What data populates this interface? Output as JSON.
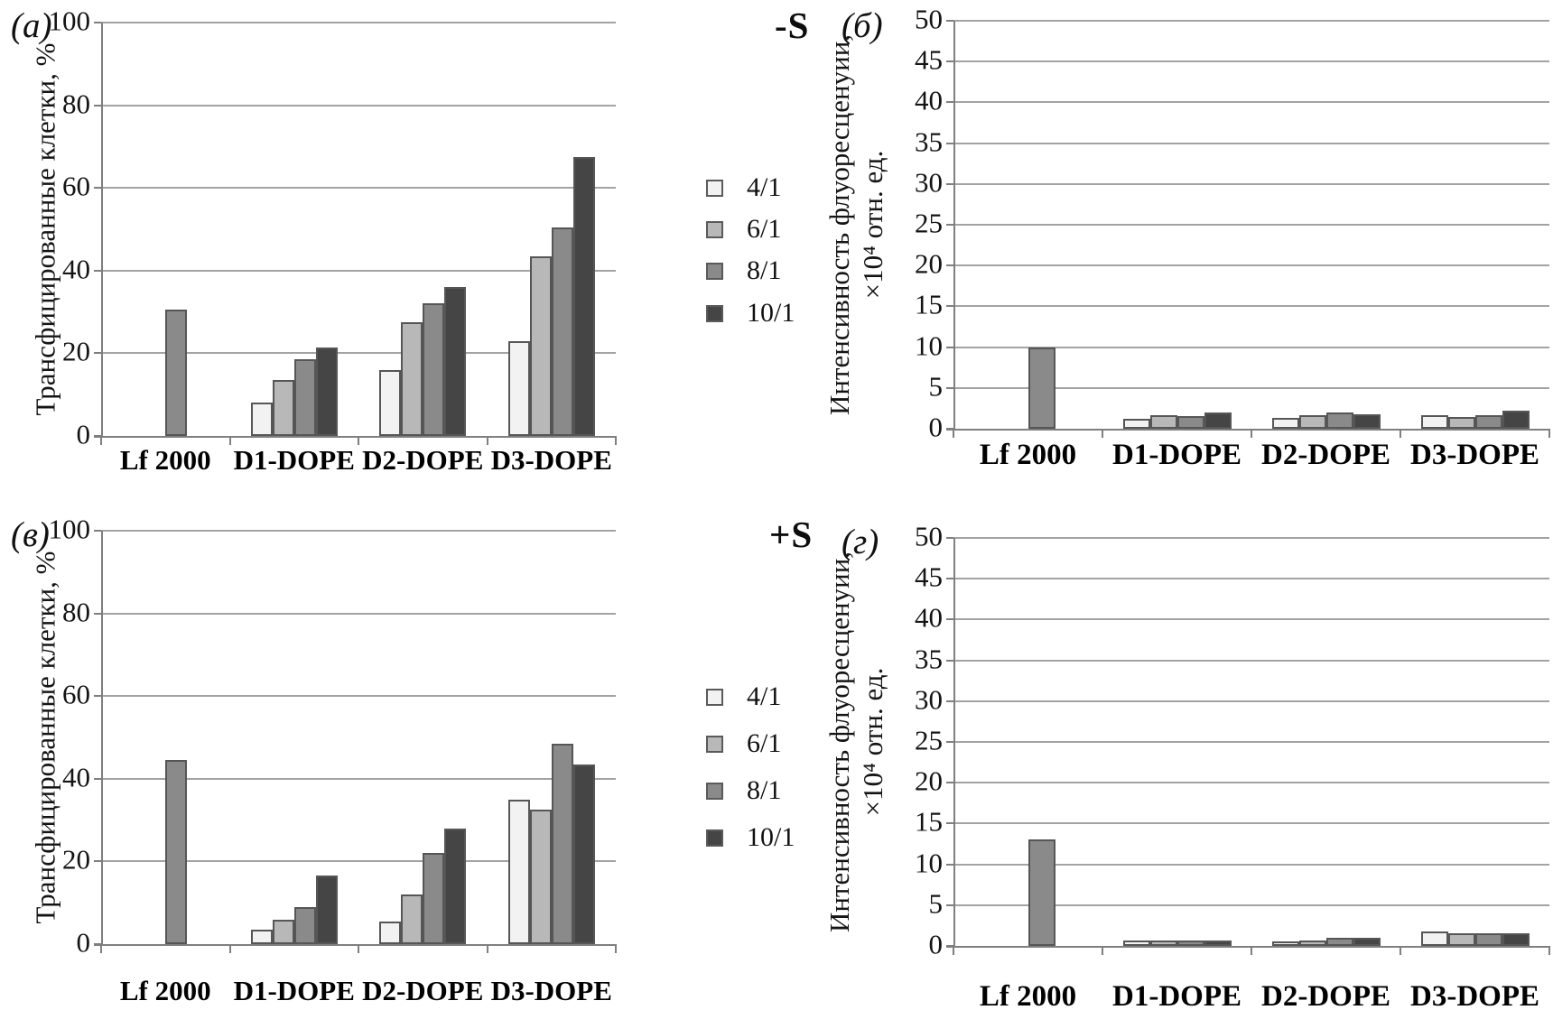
{
  "figure": {
    "background": "#ffffff",
    "gridline_color": "#a3a3a3",
    "axis_color": "#7f7f7f",
    "bar_border_color": "#565656"
  },
  "legend": {
    "items": [
      {
        "label": "4/1",
        "color": "#f2f2f2"
      },
      {
        "label": "6/1",
        "color": "#b8b8b8"
      },
      {
        "label": "8/1",
        "color": "#8a8a8a"
      },
      {
        "label": "10/1",
        "color": "#454545"
      }
    ]
  },
  "chart_data": [
    {
      "id": "a",
      "panel_letter": "(а)",
      "type": "bar",
      "ylabel": "Трансфицированные клетки, %",
      "ylim": [
        0,
        100
      ],
      "ytick_step": 20,
      "grid": true,
      "legend_position": "right-of-chart",
      "categories": [
        "Lf 2000",
        "D1-DOPE",
        "D2-DOPE",
        "D3-DOPE"
      ],
      "series": [
        {
          "name": "4/1",
          "values": [
            null,
            8,
            16,
            23
          ]
        },
        {
          "name": "6/1",
          "values": [
            null,
            13.5,
            27.5,
            43.5
          ]
        },
        {
          "name": "8/1",
          "values": [
            30.5,
            18.5,
            32,
            50.5
          ]
        },
        {
          "name": "10/1",
          "values": [
            null,
            21.5,
            36,
            67.5
          ]
        }
      ]
    },
    {
      "id": "b",
      "panel_letter": "(б)",
      "condition": "-S",
      "type": "bar",
      "ylabel_line1": "Интенсивность флуоресценуии,",
      "ylabel_line2": "×10⁴ отн. ед.",
      "ylim": [
        0,
        50
      ],
      "ytick_step": 5,
      "grid": true,
      "categories": [
        "Lf 2000",
        "D1-DOPE",
        "D2-DOPE",
        "D3-DOPE"
      ],
      "series": [
        {
          "name": "4/1",
          "values": [
            null,
            1.2,
            1.3,
            1.7
          ]
        },
        {
          "name": "6/1",
          "values": [
            null,
            1.7,
            1.7,
            1.4
          ]
        },
        {
          "name": "8/1",
          "values": [
            10,
            1.5,
            2,
            1.7
          ]
        },
        {
          "name": "10/1",
          "values": [
            null,
            2,
            1.8,
            2.2
          ]
        }
      ]
    },
    {
      "id": "v",
      "panel_letter": "(в)",
      "type": "bar",
      "ylabel": "Трансфицированные клетки, %",
      "ylim": [
        0,
        100
      ],
      "ytick_step": 20,
      "grid": true,
      "legend_position": "right-of-chart",
      "categories": [
        "Lf 2000",
        "D1-DOPE",
        "D2-DOPE",
        "D3-DOPE"
      ],
      "series": [
        {
          "name": "4/1",
          "values": [
            null,
            3.5,
            5.5,
            35
          ]
        },
        {
          "name": "6/1",
          "values": [
            null,
            6,
            12,
            32.5
          ]
        },
        {
          "name": "8/1",
          "values": [
            44.5,
            9,
            22,
            48.5
          ]
        },
        {
          "name": "10/1",
          "values": [
            null,
            16.5,
            28,
            43.5
          ]
        }
      ]
    },
    {
      "id": "g",
      "panel_letter": "(г)",
      "condition": "+S",
      "type": "bar",
      "ylabel_line1": "Интенсивность флуоресценуии,",
      "ylabel_line2": "×10⁴ отн. ед.",
      "ylim": [
        0,
        50
      ],
      "ytick_step": 5,
      "grid": true,
      "categories": [
        "Lf 2000",
        "D1-DOPE",
        "D2-DOPE",
        "D3-DOPE"
      ],
      "series": [
        {
          "name": "4/1",
          "values": [
            null,
            0.7,
            0.5,
            1.8
          ]
        },
        {
          "name": "6/1",
          "values": [
            null,
            0.7,
            0.7,
            1.5
          ]
        },
        {
          "name": "8/1",
          "values": [
            13,
            0.7,
            1,
            1.5
          ]
        },
        {
          "name": "10/1",
          "values": [
            null,
            0.7,
            1,
            1.6
          ]
        }
      ]
    }
  ]
}
